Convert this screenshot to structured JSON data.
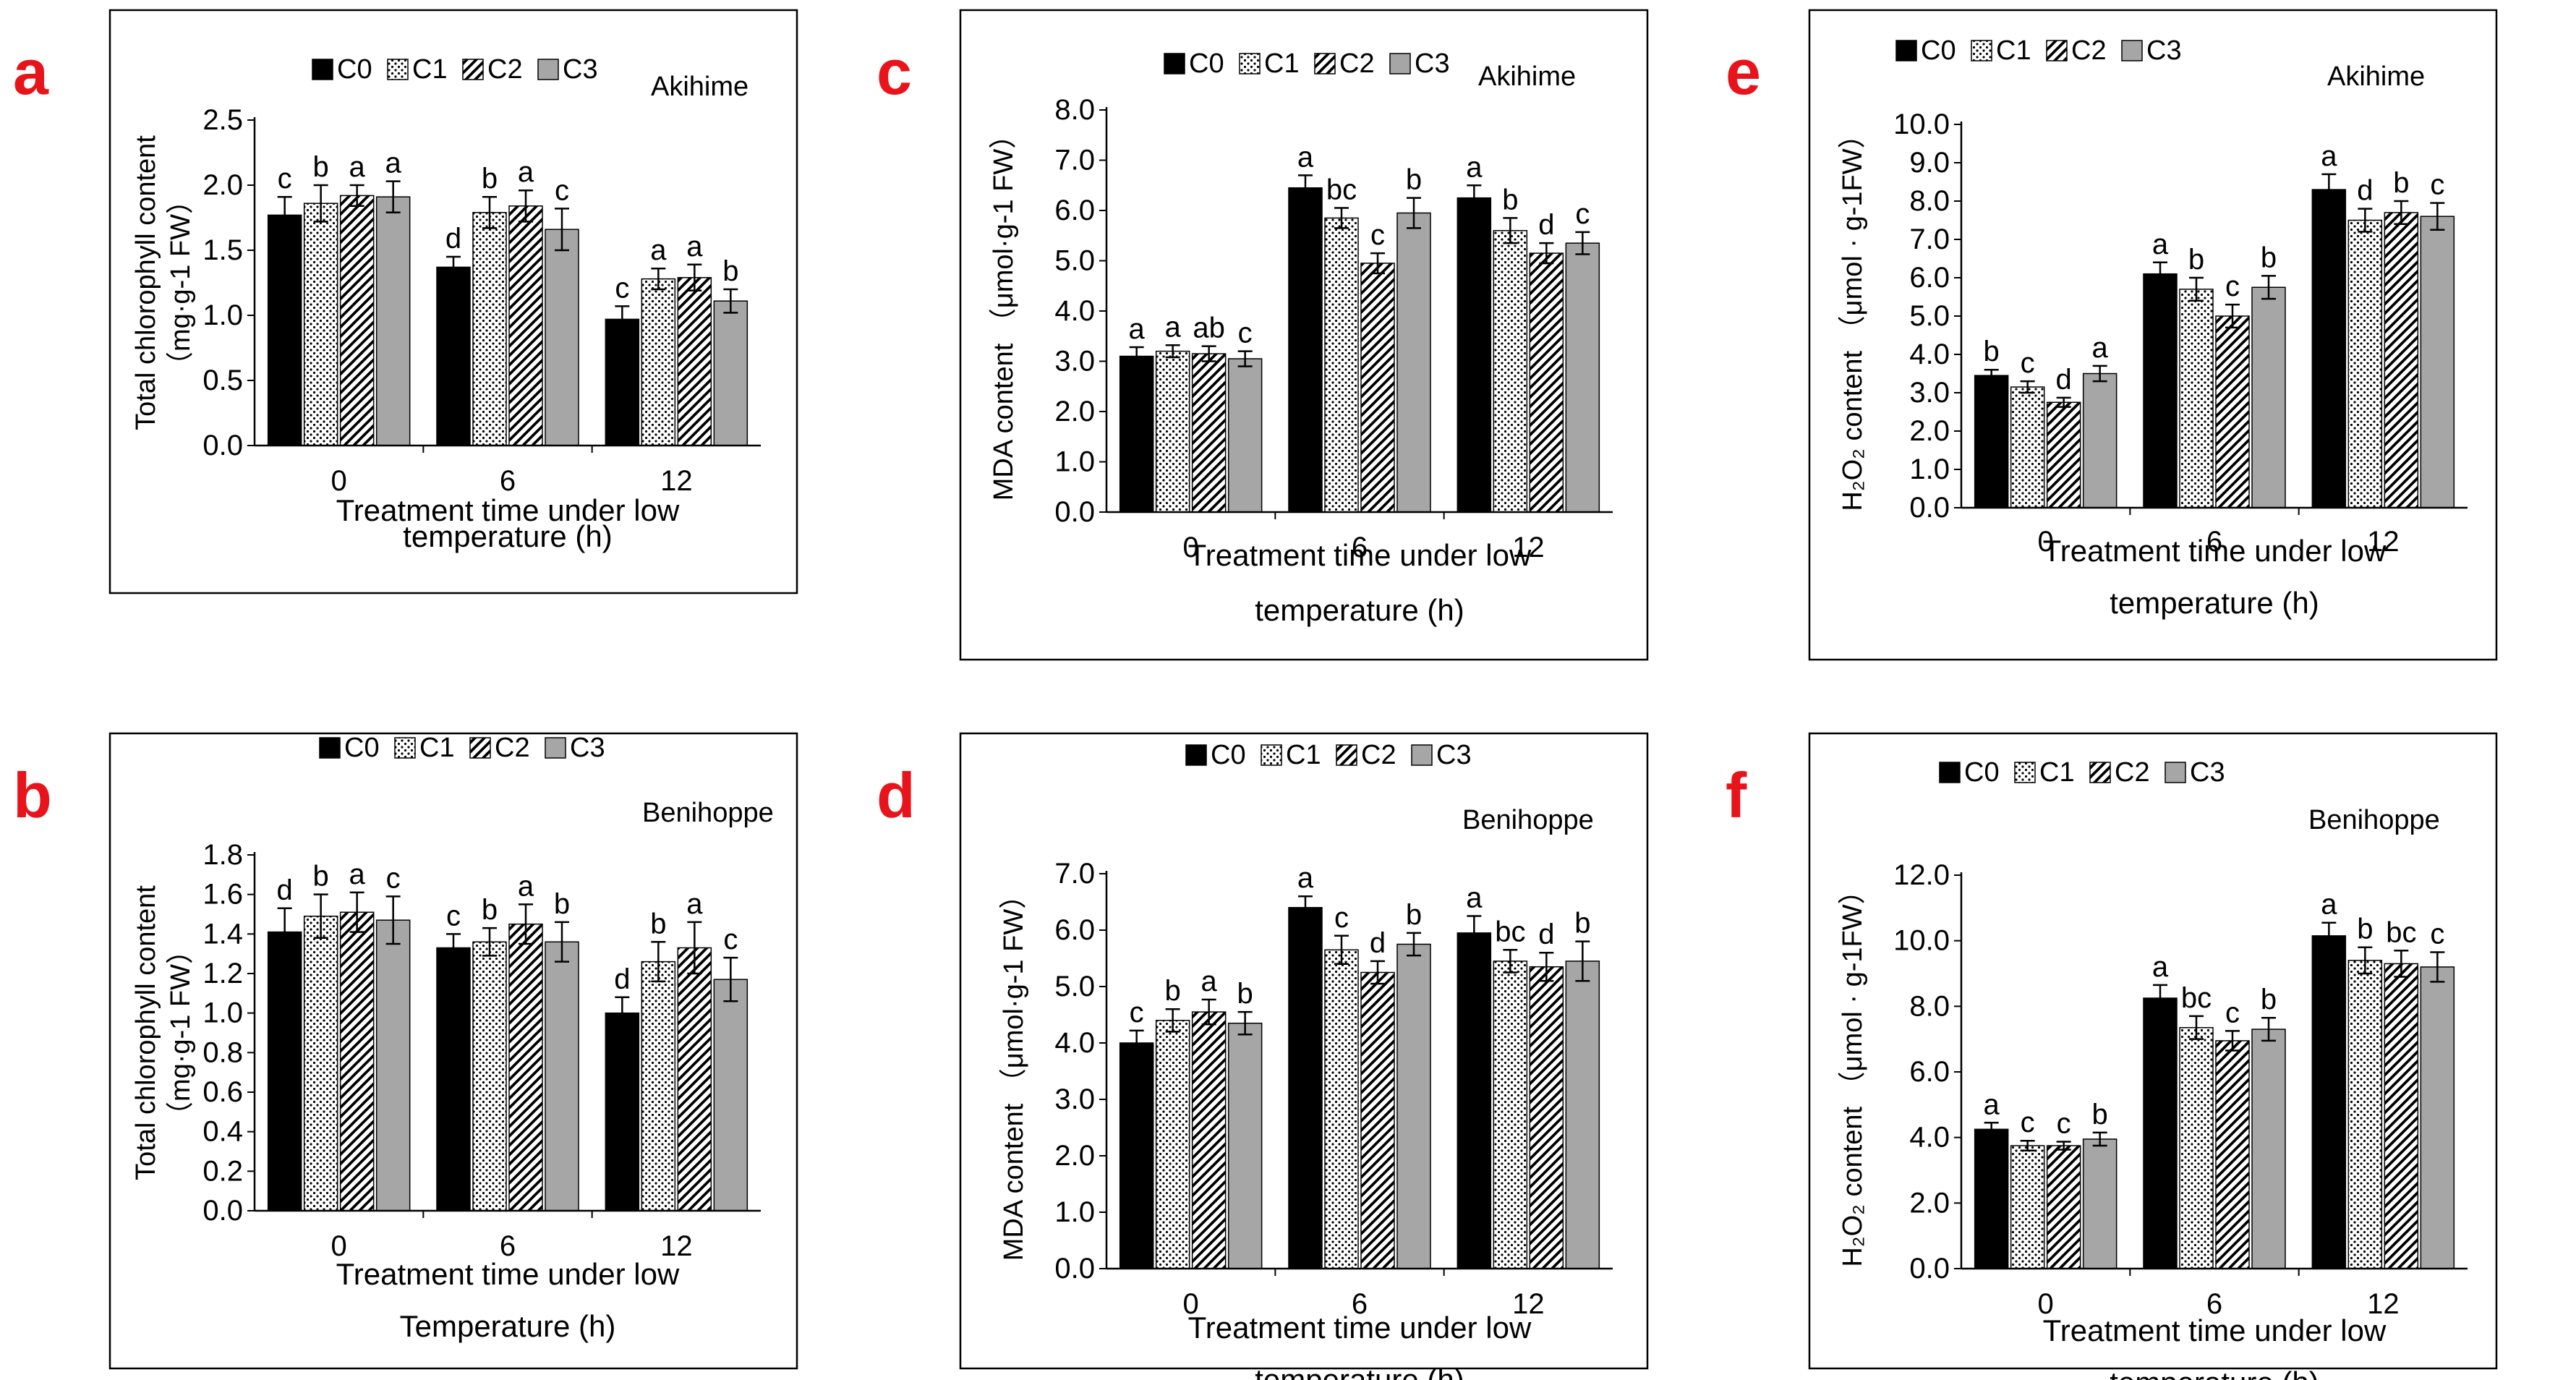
{
  "figure": {
    "letter_color": "#e8141b",
    "series_names": [
      "C0",
      "C1",
      "C2",
      "C3"
    ],
    "series_colors": {
      "c0": "#000000",
      "c3": "#a6a6a6",
      "hatch": "#000000"
    }
  },
  "chart_data": [
    {
      "id": "a",
      "panel_letter": "a",
      "type": "bar",
      "cultivar": "Akihime",
      "ylabel_lines": [
        "Total chlorophyll content",
        "（mg·g-1 FW）"
      ],
      "xlabel_lines": [
        "Treatment time under low",
        "temperature  (h)"
      ],
      "categories": [
        "0",
        "6",
        "12"
      ],
      "ylim": [
        0,
        2.5
      ],
      "yticks": [
        "0.0",
        "0.5",
        "1.0",
        "1.5",
        "2.0",
        "2.5"
      ],
      "series": [
        {
          "name": "C0",
          "values": [
            1.77,
            1.37,
            0.97
          ],
          "errors": [
            0.14,
            0.08,
            0.1
          ],
          "letters": [
            "c",
            "d",
            "c"
          ]
        },
        {
          "name": "C1",
          "values": [
            1.86,
            1.79,
            1.28
          ],
          "errors": [
            0.14,
            0.12,
            0.08
          ],
          "letters": [
            "b",
            "b",
            "a"
          ]
        },
        {
          "name": "C2",
          "values": [
            1.92,
            1.84,
            1.29
          ],
          "errors": [
            0.08,
            0.12,
            0.1
          ],
          "letters": [
            "a",
            "a",
            "a"
          ]
        },
        {
          "name": "C3",
          "values": [
            1.91,
            1.66,
            1.11
          ],
          "errors": [
            0.12,
            0.16,
            0.09
          ],
          "letters": [
            "a",
            "c",
            "b"
          ]
        }
      ]
    },
    {
      "id": "b",
      "panel_letter": "b",
      "type": "bar",
      "cultivar": "Benihoppe",
      "ylabel_lines": [
        "Total chlorophyll content",
        "（mg·g-1 FW）"
      ],
      "xlabel_lines": [
        "Treatment time under low",
        "Temperature (h)"
      ],
      "categories": [
        "0",
        "6",
        "12"
      ],
      "ylim": [
        0,
        1.8
      ],
      "yticks": [
        "0.0",
        "0.2",
        "0.4",
        "0.6",
        "0.8",
        "1.0",
        "1.2",
        "1.4",
        "1.6",
        "1.8"
      ],
      "series": [
        {
          "name": "C0",
          "values": [
            1.41,
            1.33,
            1.0
          ],
          "errors": [
            0.12,
            0.07,
            0.08
          ],
          "letters": [
            "d",
            "c",
            "d"
          ]
        },
        {
          "name": "C1",
          "values": [
            1.49,
            1.36,
            1.26
          ],
          "errors": [
            0.11,
            0.07,
            0.1
          ],
          "letters": [
            "b",
            "b",
            "b"
          ]
        },
        {
          "name": "C2",
          "values": [
            1.51,
            1.45,
            1.33
          ],
          "errors": [
            0.1,
            0.1,
            0.13
          ],
          "letters": [
            "a",
            "a",
            "a"
          ]
        },
        {
          "name": "C3",
          "values": [
            1.47,
            1.36,
            1.17
          ],
          "errors": [
            0.12,
            0.1,
            0.11
          ],
          "letters": [
            "c",
            "b",
            "c"
          ]
        }
      ]
    },
    {
      "id": "c",
      "panel_letter": "c",
      "type": "bar",
      "cultivar": "Akihime",
      "ylabel_lines": [
        "MDA content （μmol·g-1 FW）"
      ],
      "xlabel_lines": [
        "Treatment time under low",
        "temperature (h)"
      ],
      "categories": [
        "0",
        "6",
        "12"
      ],
      "ylim": [
        0,
        8
      ],
      "yticks": [
        "0.0",
        "1.0",
        "2.0",
        "3.0",
        "4.0",
        "5.0",
        "6.0",
        "7.0",
        "8.0"
      ],
      "series": [
        {
          "name": "C0",
          "values": [
            3.1,
            6.45,
            6.25
          ],
          "errors": [
            0.18,
            0.25,
            0.25
          ],
          "letters": [
            "a",
            "a",
            "a"
          ]
        },
        {
          "name": "C1",
          "values": [
            3.2,
            5.85,
            5.6
          ],
          "errors": [
            0.12,
            0.2,
            0.25
          ],
          "letters": [
            "a",
            "bc",
            "b"
          ]
        },
        {
          "name": "C2",
          "values": [
            3.15,
            4.95,
            5.15
          ],
          "errors": [
            0.15,
            0.2,
            0.2
          ],
          "letters": [
            "ab",
            "c",
            "d"
          ]
        },
        {
          "name": "C3",
          "values": [
            3.05,
            5.95,
            5.35
          ],
          "errors": [
            0.15,
            0.3,
            0.22
          ],
          "letters": [
            "c",
            "b",
            "c"
          ]
        }
      ]
    },
    {
      "id": "d",
      "panel_letter": "d",
      "type": "bar",
      "cultivar": "Benihoppe",
      "ylabel_lines": [
        "MDA content （μmol·g-1 FW）"
      ],
      "xlabel_lines": [
        "Treatment time under low",
        "temperature (h)"
      ],
      "categories": [
        "0",
        "6",
        "12"
      ],
      "ylim": [
        0,
        7
      ],
      "yticks": [
        "0.0",
        "1.0",
        "2.0",
        "3.0",
        "4.0",
        "5.0",
        "6.0",
        "7.0"
      ],
      "series": [
        {
          "name": "C0",
          "values": [
            4.0,
            6.4,
            5.95
          ],
          "errors": [
            0.22,
            0.2,
            0.3
          ],
          "letters": [
            "c",
            "a",
            "a"
          ]
        },
        {
          "name": "C1",
          "values": [
            4.4,
            5.65,
            5.45
          ],
          "errors": [
            0.2,
            0.25,
            0.2
          ],
          "letters": [
            "b",
            "c",
            "bc"
          ]
        },
        {
          "name": "C2",
          "values": [
            4.55,
            5.25,
            5.35
          ],
          "errors": [
            0.22,
            0.2,
            0.25
          ],
          "letters": [
            "a",
            "d",
            "d"
          ]
        },
        {
          "name": "C3",
          "values": [
            4.35,
            5.75,
            5.45
          ],
          "errors": [
            0.2,
            0.2,
            0.35
          ],
          "letters": [
            "b",
            "b",
            "b"
          ]
        }
      ]
    },
    {
      "id": "e",
      "panel_letter": "e",
      "type": "bar",
      "cultivar": "Akihime",
      "ylabel_lines": [
        "H₂O₂ content  （μmol · g-1FW）"
      ],
      "xlabel_lines": [
        "Treatment time under low",
        "temperature (h)"
      ],
      "categories": [
        "0",
        "6",
        "12"
      ],
      "ylim": [
        0,
        10
      ],
      "yticks": [
        "0.0",
        "1.0",
        "2.0",
        "3.0",
        "4.0",
        "5.0",
        "6.0",
        "7.0",
        "8.0",
        "9.0",
        "10.0"
      ],
      "series": [
        {
          "name": "C0",
          "values": [
            3.45,
            6.1,
            8.3
          ],
          "errors": [
            0.15,
            0.3,
            0.4
          ],
          "letters": [
            "b",
            "a",
            "a"
          ]
        },
        {
          "name": "C1",
          "values": [
            3.15,
            5.7,
            7.5
          ],
          "errors": [
            0.15,
            0.3,
            0.3
          ],
          "letters": [
            "c",
            "b",
            "d"
          ]
        },
        {
          "name": "C2",
          "values": [
            2.75,
            5.0,
            7.7
          ],
          "errors": [
            0.12,
            0.3,
            0.3
          ],
          "letters": [
            "d",
            "c",
            "b"
          ]
        },
        {
          "name": "C3",
          "values": [
            3.5,
            5.75,
            7.6
          ],
          "errors": [
            0.2,
            0.3,
            0.35
          ],
          "letters": [
            "a",
            "b",
            "c"
          ]
        }
      ]
    },
    {
      "id": "f",
      "panel_letter": "f",
      "type": "bar",
      "cultivar": "Benihoppe",
      "ylabel_lines": [
        "H₂O₂ content （μmol · g-1FW）"
      ],
      "xlabel_lines": [
        "Treatment time under low",
        "temperature (h)"
      ],
      "categories": [
        "0",
        "6",
        "12"
      ],
      "ylim": [
        0,
        12
      ],
      "yticks": [
        "0.0",
        "2.0",
        "4.0",
        "6.0",
        "8.0",
        "10.0",
        "12.0"
      ],
      "series": [
        {
          "name": "C0",
          "values": [
            4.25,
            8.25,
            10.15
          ],
          "errors": [
            0.2,
            0.4,
            0.4
          ],
          "letters": [
            "a",
            "a",
            "a"
          ]
        },
        {
          "name": "C1",
          "values": [
            3.75,
            7.35,
            9.4
          ],
          "errors": [
            0.15,
            0.35,
            0.4
          ],
          "letters": [
            "c",
            "bc",
            "b"
          ]
        },
        {
          "name": "C2",
          "values": [
            3.75,
            6.95,
            9.3
          ],
          "errors": [
            0.12,
            0.3,
            0.4
          ],
          "letters": [
            "c",
            "c",
            "bc"
          ]
        },
        {
          "name": "C3",
          "values": [
            3.95,
            7.3,
            9.2
          ],
          "errors": [
            0.2,
            0.35,
            0.45
          ],
          "letters": [
            "b",
            "b",
            "c"
          ]
        }
      ]
    }
  ]
}
